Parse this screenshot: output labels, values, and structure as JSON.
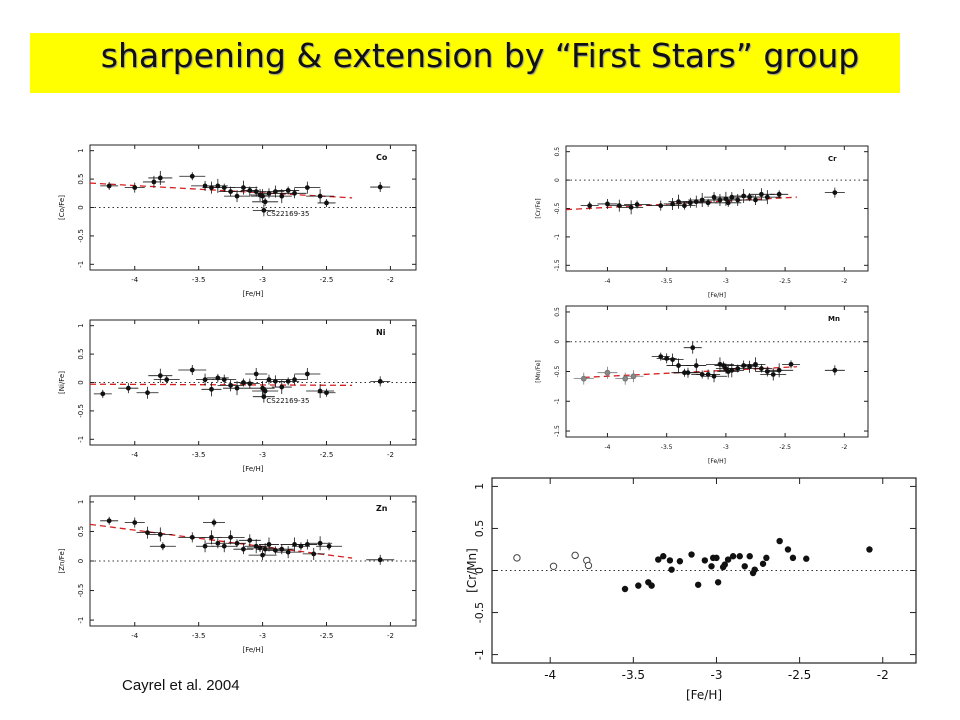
{
  "title": "sharpening & extension by “First Stars” group",
  "caption": "Cayrel et al. 2004",
  "chart_data": [
    {
      "id": "co",
      "type": "scatter",
      "element": "Co",
      "xlabel": "[Fe/H]",
      "ylabel": "[Co/Fe]",
      "xlim": [
        -4.35,
        -1.8
      ],
      "ylim": [
        -1.1,
        1.1
      ],
      "xticks": [
        -4,
        -3.5,
        -3,
        -2.5,
        -2
      ],
      "yticks": [
        -1,
        -0.5,
        0,
        0.5,
        1
      ],
      "xtick_labels": [
        "-4",
        "-3.5",
        "-3",
        "-2.5",
        "-2"
      ],
      "ytick_labels": [
        "-1",
        "-0.5",
        "0",
        "0.5",
        "1"
      ],
      "ref_line_y": 0,
      "fit": {
        "x": [
          -4.35,
          -2.3
        ],
        "y": [
          0.43,
          0.17
        ]
      },
      "annotation": {
        "text": "CS22169-35",
        "x": -2.97,
        "y": -0.15
      },
      "points": [
        [
          -4.2,
          0.38
        ],
        [
          -4.0,
          0.35
        ],
        [
          -3.85,
          0.45
        ],
        [
          -3.8,
          0.52
        ],
        [
          -3.55,
          0.55
        ],
        [
          -3.45,
          0.38
        ],
        [
          -3.4,
          0.35
        ],
        [
          -3.35,
          0.38
        ],
        [
          -3.3,
          0.35
        ],
        [
          -3.25,
          0.28
        ],
        [
          -3.2,
          0.2
        ],
        [
          -3.15,
          0.35
        ],
        [
          -3.1,
          0.3
        ],
        [
          -3.05,
          0.28
        ],
        [
          -3.02,
          0.22
        ],
        [
          -3.0,
          0.2
        ],
        [
          -2.98,
          0.1
        ],
        [
          -2.95,
          0.25
        ],
        [
          -2.9,
          0.28
        ],
        [
          -2.85,
          0.2
        ],
        [
          -2.8,
          0.3
        ],
        [
          -2.75,
          0.25
        ],
        [
          -2.65,
          0.35
        ],
        [
          -2.55,
          0.2
        ],
        [
          -2.5,
          0.08
        ],
        [
          -2.08,
          0.36
        ]
      ],
      "annotated_point": [
        -2.99,
        -0.05
      ]
    },
    {
      "id": "ni",
      "type": "scatter",
      "element": "Ni",
      "xlabel": "[Fe/H]",
      "ylabel": "[Ni/Fe]",
      "xlim": [
        -4.35,
        -1.8
      ],
      "ylim": [
        -1.1,
        1.1
      ],
      "xticks": [
        -4,
        -3.5,
        -3,
        -2.5,
        -2
      ],
      "yticks": [
        -1,
        -0.5,
        0,
        0.5,
        1
      ],
      "xtick_labels": [
        "-4",
        "-3.5",
        "-3",
        "-2.5",
        "-2"
      ],
      "ytick_labels": [
        "-1",
        "-0.5",
        "0",
        "0.5",
        "1"
      ],
      "ref_line_y": 0,
      "fit": {
        "x": [
          -4.35,
          -2.3
        ],
        "y": [
          -0.03,
          -0.05
        ]
      },
      "annotation": {
        "text": "CS22169-35",
        "x": -2.97,
        "y": -0.36
      },
      "points": [
        [
          -4.25,
          -0.2
        ],
        [
          -4.05,
          -0.1
        ],
        [
          -3.9,
          -0.18
        ],
        [
          -3.8,
          0.12
        ],
        [
          -3.75,
          0.05
        ],
        [
          -3.55,
          0.22
        ],
        [
          -3.45,
          0.05
        ],
        [
          -3.4,
          -0.12
        ],
        [
          -3.35,
          0.08
        ],
        [
          -3.3,
          0.05
        ],
        [
          -3.25,
          -0.05
        ],
        [
          -3.2,
          -0.1
        ],
        [
          -3.15,
          0.0
        ],
        [
          -3.1,
          -0.02
        ],
        [
          -3.05,
          0.15
        ],
        [
          -3.0,
          -0.1
        ],
        [
          -2.98,
          -0.15
        ],
        [
          -2.95,
          0.05
        ],
        [
          -2.9,
          0.02
        ],
        [
          -2.85,
          -0.08
        ],
        [
          -2.8,
          0.02
        ],
        [
          -2.75,
          0.05
        ],
        [
          -2.65,
          0.15
        ],
        [
          -2.55,
          -0.15
        ],
        [
          -2.5,
          -0.18
        ],
        [
          -2.08,
          0.02
        ]
      ],
      "annotated_point": [
        -2.99,
        -0.25
      ]
    },
    {
      "id": "zn",
      "type": "scatter",
      "element": "Zn",
      "xlabel": "[Fe/H]",
      "ylabel": "[Zn/Fe]",
      "xlim": [
        -4.35,
        -1.8
      ],
      "ylim": [
        -1.1,
        1.1
      ],
      "xticks": [
        -4,
        -3.5,
        -3,
        -2.5,
        -2
      ],
      "yticks": [
        -1,
        -0.5,
        0,
        0.5,
        1
      ],
      "xtick_labels": [
        "-4",
        "-3.5",
        "-3",
        "-2.5",
        "-2"
      ],
      "ytick_labels": [
        "-1",
        "-0.5",
        "0",
        "0.5",
        "1"
      ],
      "ref_line_y": 0,
      "fit": {
        "x": [
          -4.35,
          -2.3
        ],
        "y": [
          0.62,
          0.05
        ]
      },
      "points": [
        [
          -4.2,
          0.68
        ],
        [
          -4.0,
          0.65
        ],
        [
          -3.9,
          0.48
        ],
        [
          -3.8,
          0.45
        ],
        [
          -3.78,
          0.25
        ],
        [
          -3.55,
          0.4
        ],
        [
          -3.45,
          0.25
        ],
        [
          -3.4,
          0.4
        ],
        [
          -3.38,
          0.65
        ],
        [
          -3.35,
          0.3
        ],
        [
          -3.3,
          0.25
        ],
        [
          -3.25,
          0.4
        ],
        [
          -3.2,
          0.3
        ],
        [
          -3.15,
          0.2
        ],
        [
          -3.1,
          0.35
        ],
        [
          -3.05,
          0.25
        ],
        [
          -3.02,
          0.22
        ],
        [
          -3.0,
          0.1
        ],
        [
          -2.98,
          0.2
        ],
        [
          -2.95,
          0.28
        ],
        [
          -2.9,
          0.18
        ],
        [
          -2.85,
          0.2
        ],
        [
          -2.8,
          0.15
        ],
        [
          -2.75,
          0.28
        ],
        [
          -2.7,
          0.25
        ],
        [
          -2.65,
          0.28
        ],
        [
          -2.6,
          0.12
        ],
        [
          -2.55,
          0.3
        ],
        [
          -2.48,
          0.25
        ],
        [
          -2.08,
          0.02
        ]
      ]
    },
    {
      "id": "cr",
      "type": "scatter",
      "element": "Cr",
      "xlabel": "[Fe/H]",
      "ylabel": "[Cr/Fe]",
      "xlim": [
        -4.35,
        -1.8
      ],
      "ylim": [
        -1.6,
        0.6
      ],
      "xticks": [
        -4,
        -3.5,
        -3,
        -2.5,
        -2
      ],
      "yticks": [
        -1.5,
        -1,
        -0.5,
        0,
        0.5
      ],
      "xtick_labels": [
        "-4",
        "-3.5",
        "-3",
        "-2.5",
        "-2"
      ],
      "ytick_labels": [
        "-1.5",
        "-1",
        "-0.5",
        "0",
        "0.5"
      ],
      "ref_line_y": 0,
      "fit": {
        "x": [
          -4.35,
          -2.4
        ],
        "y": [
          -0.52,
          -0.3
        ]
      },
      "points": [
        [
          -4.15,
          -0.45
        ],
        [
          -4.0,
          -0.42
        ],
        [
          -3.9,
          -0.45
        ],
        [
          -3.8,
          -0.48
        ],
        [
          -3.75,
          -0.43
        ],
        [
          -3.55,
          -0.45
        ],
        [
          -3.45,
          -0.42
        ],
        [
          -3.4,
          -0.38
        ],
        [
          -3.35,
          -0.45
        ],
        [
          -3.3,
          -0.4
        ],
        [
          -3.25,
          -0.38
        ],
        [
          -3.2,
          -0.35
        ],
        [
          -3.15,
          -0.4
        ],
        [
          -3.1,
          -0.3
        ],
        [
          -3.05,
          -0.35
        ],
        [
          -3.0,
          -0.33
        ],
        [
          -2.98,
          -0.4
        ],
        [
          -2.95,
          -0.3
        ],
        [
          -2.9,
          -0.35
        ],
        [
          -2.85,
          -0.28
        ],
        [
          -2.8,
          -0.3
        ],
        [
          -2.75,
          -0.35
        ],
        [
          -2.7,
          -0.25
        ],
        [
          -2.65,
          -0.3
        ],
        [
          -2.55,
          -0.25
        ],
        [
          -2.08,
          -0.22
        ]
      ]
    },
    {
      "id": "mn",
      "type": "scatter",
      "element": "Mn",
      "xlabel": "[Fe/H]",
      "ylabel": "[Mn/Fe]",
      "xlim": [
        -4.35,
        -1.8
      ],
      "ylim": [
        -1.6,
        0.6
      ],
      "xticks": [
        -4,
        -3.5,
        -3,
        -2.5,
        -2
      ],
      "yticks": [
        -1.5,
        -1,
        -0.5,
        0,
        0.5
      ],
      "xtick_labels": [
        "-4",
        "-3.5",
        "-3",
        "-2.5",
        "-2"
      ],
      "ytick_labels": [
        "-1.5",
        "-1",
        "-0.5",
        "0",
        "0.5"
      ],
      "ref_line_y": 0,
      "fit": {
        "x": [
          -4.2,
          -2.4
        ],
        "y": [
          -0.6,
          -0.42
        ]
      },
      "open_points": [
        [
          -4.2,
          -0.62
        ],
        [
          -4.0,
          -0.52
        ],
        [
          -3.85,
          -0.62
        ],
        [
          -3.78,
          -0.58
        ]
      ],
      "points": [
        [
          -3.55,
          -0.25
        ],
        [
          -3.5,
          -0.28
        ],
        [
          -3.45,
          -0.3
        ],
        [
          -3.4,
          -0.4
        ],
        [
          -3.35,
          -0.52
        ],
        [
          -3.32,
          -0.52
        ],
        [
          -3.28,
          -0.1
        ],
        [
          -3.25,
          -0.4
        ],
        [
          -3.2,
          -0.55
        ],
        [
          -3.15,
          -0.55
        ],
        [
          -3.1,
          -0.58
        ],
        [
          -3.05,
          -0.38
        ],
        [
          -3.02,
          -0.4
        ],
        [
          -3.0,
          -0.45
        ],
        [
          -2.98,
          -0.5
        ],
        [
          -2.95,
          -0.48
        ],
        [
          -2.9,
          -0.45
        ],
        [
          -2.85,
          -0.4
        ],
        [
          -2.8,
          -0.42
        ],
        [
          -2.75,
          -0.38
        ],
        [
          -2.7,
          -0.45
        ],
        [
          -2.65,
          -0.5
        ],
        [
          -2.6,
          -0.55
        ],
        [
          -2.55,
          -0.48
        ],
        [
          -2.45,
          -0.38
        ],
        [
          -2.08,
          -0.48
        ]
      ]
    },
    {
      "id": "crmn",
      "type": "scatter",
      "xlabel": "[Fe/H]",
      "ylabel": "[Cr/Mn]",
      "xlim": [
        -4.35,
        -1.8
      ],
      "ylim": [
        -1.1,
        1.1
      ],
      "xticks": [
        -4,
        -3.5,
        -3,
        -2.5,
        -2
      ],
      "yticks": [
        -1,
        -0.5,
        0,
        0.5,
        1
      ],
      "xtick_labels": [
        "-4",
        "-3.5",
        "-3",
        "-2.5",
        "-2"
      ],
      "ytick_labels": [
        "-1",
        "-0.5",
        "0",
        "0.5",
        "1"
      ],
      "ref_line_y": 0,
      "open_points": [
        [
          -4.2,
          0.15
        ],
        [
          -3.98,
          0.05
        ],
        [
          -3.85,
          0.18
        ],
        [
          -3.78,
          0.12
        ],
        [
          -3.77,
          0.06
        ]
      ],
      "points": [
        [
          -3.55,
          -0.22
        ],
        [
          -3.47,
          -0.18
        ],
        [
          -3.41,
          -0.14
        ],
        [
          -3.39,
          -0.18
        ],
        [
          -3.35,
          0.13
        ],
        [
          -3.32,
          0.17
        ],
        [
          -3.28,
          0.12
        ],
        [
          -3.27,
          0.01
        ],
        [
          -3.22,
          0.11
        ],
        [
          -3.15,
          0.19
        ],
        [
          -3.11,
          -0.17
        ],
        [
          -3.07,
          0.12
        ],
        [
          -3.03,
          0.05
        ],
        [
          -3.02,
          0.15
        ],
        [
          -3.0,
          0.15
        ],
        [
          -2.99,
          -0.14
        ],
        [
          -2.96,
          0.04
        ],
        [
          -2.95,
          0.07
        ],
        [
          -2.93,
          0.13
        ],
        [
          -2.9,
          0.17
        ],
        [
          -2.86,
          0.17
        ],
        [
          -2.83,
          0.05
        ],
        [
          -2.8,
          0.17
        ],
        [
          -2.78,
          -0.03
        ],
        [
          -2.77,
          0.01
        ],
        [
          -2.72,
          0.08
        ],
        [
          -2.7,
          0.15
        ],
        [
          -2.62,
          0.35
        ],
        [
          -2.57,
          0.25
        ],
        [
          -2.54,
          0.15
        ],
        [
          -2.46,
          0.14
        ],
        [
          -2.08,
          0.25
        ]
      ]
    }
  ]
}
